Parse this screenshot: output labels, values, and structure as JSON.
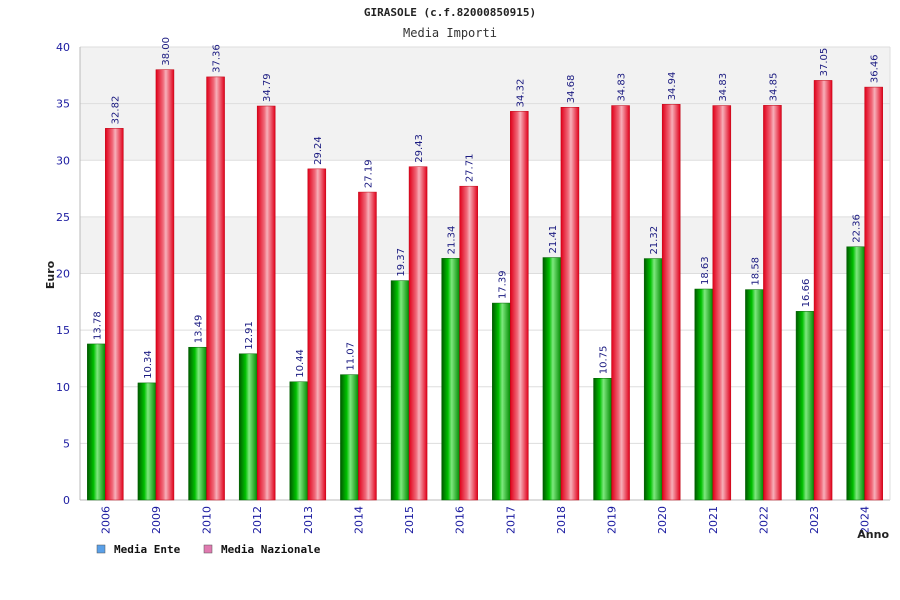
{
  "chart_data": {
    "type": "bar",
    "title": "GIRASOLE (c.f.82000850915)",
    "subtitle": "Media Importi",
    "xlabel": "Anno",
    "ylabel": "Euro",
    "ylim": [
      0,
      40
    ],
    "yticks": [
      0,
      5,
      10,
      15,
      20,
      25,
      30,
      35,
      40
    ],
    "grid": true,
    "legend_position": "bottom-left",
    "categories": [
      "2006",
      "2009",
      "2010",
      "2012",
      "2013",
      "2014",
      "2015",
      "2016",
      "2017",
      "2018",
      "2019",
      "2020",
      "2021",
      "2022",
      "2023",
      "2024"
    ],
    "series": [
      {
        "name": "Media Ente",
        "color": "#00b000",
        "legend_color": "#5aa0e8",
        "values": [
          13.78,
          10.34,
          13.49,
          12.91,
          10.44,
          11.07,
          19.37,
          21.34,
          17.39,
          21.41,
          10.75,
          21.32,
          18.63,
          18.58,
          16.66,
          22.36
        ],
        "labels": [
          "13.78",
          "10.34",
          "13.49",
          "12.91",
          "10.44",
          "11.07",
          "19.37",
          "21.34",
          "17.39",
          "21.41",
          "10.75",
          "21.32",
          "18.63",
          "18.58",
          "16.66",
          "22.36"
        ]
      },
      {
        "name": "Media Nazionale",
        "color": "#e8101a",
        "legend_color": "#e07ab0",
        "values": [
          32.82,
          38.0,
          37.36,
          34.79,
          29.24,
          27.19,
          29.43,
          27.71,
          34.32,
          34.68,
          34.83,
          34.94,
          34.83,
          34.85,
          37.05,
          36.46
        ],
        "labels": [
          "32.82",
          "38.00",
          "37.36",
          "34.79",
          "29.24",
          "27.19",
          "29.43",
          "27.71",
          "34.32",
          "34.68",
          "34.83",
          "34.94",
          "34.83",
          "34.85",
          "37.05",
          "36.46"
        ]
      }
    ]
  }
}
